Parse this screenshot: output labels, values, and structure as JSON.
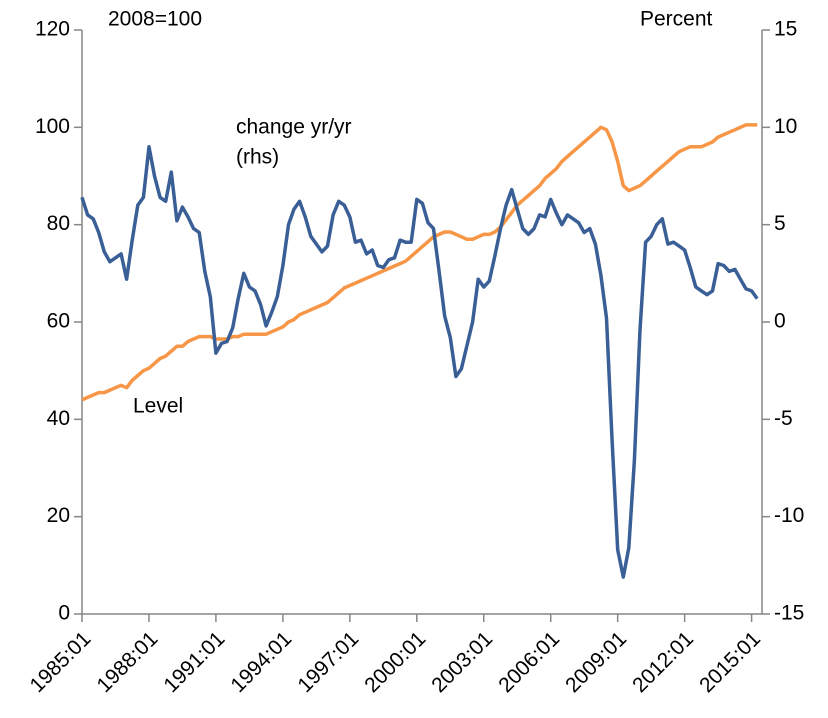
{
  "chart_data": {
    "type": "line",
    "annotations": [
      "2008=100",
      "Percent",
      "change yr/yr",
      "(rhs)",
      "Level"
    ],
    "categories": [
      "1985:01",
      null,
      null,
      null,
      null,
      null,
      null,
      null,
      null,
      null,
      null,
      null,
      "1988:01",
      null,
      null,
      null,
      null,
      null,
      null,
      null,
      null,
      null,
      null,
      null,
      "1991:01",
      null,
      null,
      null,
      null,
      null,
      null,
      null,
      null,
      null,
      null,
      null,
      "1994:01",
      null,
      null,
      null,
      null,
      null,
      null,
      null,
      null,
      null,
      null,
      null,
      "1997:01",
      null,
      null,
      null,
      null,
      null,
      null,
      null,
      null,
      null,
      null,
      null,
      "2000:01",
      null,
      null,
      null,
      null,
      null,
      null,
      null,
      null,
      null,
      null,
      null,
      "2003:01",
      null,
      null,
      null,
      null,
      null,
      null,
      null,
      null,
      null,
      null,
      null,
      "2006:01",
      null,
      null,
      null,
      null,
      null,
      null,
      null,
      null,
      null,
      null,
      null,
      "2009:01",
      null,
      null,
      null,
      null,
      null,
      null,
      null,
      null,
      null,
      null,
      null,
      "2012:01",
      null,
      null,
      null,
      null,
      null,
      null,
      null,
      null,
      null,
      null,
      null,
      "2015:01",
      null
    ],
    "series": [
      {
        "color": "#f79646",
        "values": [
          44,
          44.5,
          45,
          45.5,
          45.5,
          46,
          46.5,
          47,
          46.5,
          48,
          49,
          50,
          50.5,
          51.5,
          52.5,
          53,
          54,
          55,
          55,
          56,
          56.5,
          57,
          57,
          57,
          56.5,
          56.5,
          56.5,
          57,
          57,
          57.5,
          57.5,
          57.5,
          57.5,
          57.5,
          58,
          58.5,
          59,
          60,
          60.5,
          61.5,
          62,
          62.5,
          63,
          63.5,
          64,
          65,
          66,
          67,
          67.5,
          68,
          68.5,
          69,
          69.5,
          70,
          70.5,
          71,
          71.5,
          72,
          72.5,
          73.5,
          74.5,
          75.5,
          76.5,
          77.5,
          78,
          78.5,
          78.5,
          78,
          77.5,
          77,
          77,
          77.5,
          78,
          78,
          78.5,
          79.5,
          81,
          82.5,
          84,
          85,
          86,
          87,
          88,
          89.5,
          90.5,
          91.5,
          93,
          94,
          95,
          96,
          97,
          98,
          99,
          100,
          99.5,
          97,
          93,
          88,
          87,
          87.5,
          88,
          89,
          90,
          91,
          92,
          93,
          94,
          95,
          95.5,
          96,
          96,
          96,
          96.5,
          97,
          98,
          98.5,
          99,
          99.5,
          100,
          100.5,
          100.5,
          100.5
        ]
      },
      {
        "color": "#3a5f96",
        "axis": "y2",
        "values": [
          6.4,
          5.5,
          5.3,
          4.6,
          3.6,
          3.1,
          3.3,
          3.5,
          2.2,
          4.2,
          6.0,
          6.4,
          9.0,
          7.5,
          6.4,
          6.2,
          7.7,
          5.2,
          5.9,
          5.4,
          4.8,
          4.6,
          2.6,
          1.3,
          -1.6,
          -1.1,
          -1.0,
          -0.3,
          1.2,
          2.5,
          1.8,
          1.6,
          0.9,
          -0.2,
          0.5,
          1.3,
          2.9,
          5.0,
          5.8,
          6.2,
          5.4,
          4.4,
          4.0,
          3.6,
          3.9,
          5.5,
          6.2,
          6.0,
          5.4,
          4.1,
          4.2,
          3.5,
          3.7,
          2.9,
          2.8,
          3.2,
          3.3,
          4.2,
          4.1,
          4.1,
          6.3,
          6.1,
          5.1,
          4.8,
          2.6,
          0.3,
          -0.8,
          -2.8,
          -2.4,
          -1.2,
          0,
          2.2,
          1.8,
          2.1,
          3.4,
          4.8,
          6.0,
          6.8,
          5.8,
          4.8,
          4.5,
          4.8,
          5.5,
          5.4,
          6.3,
          5.6,
          5.0,
          5.5,
          5.3,
          5.1,
          4.6,
          4.8,
          4.0,
          2.4,
          0.2,
          -6.1,
          -11.7,
          -13.1,
          -11.6,
          -7.1,
          -0.4,
          4.1,
          4.4,
          5.0,
          5.3,
          4.0,
          4.1,
          3.9,
          3.7,
          2.8,
          1.8,
          1.6,
          1.4,
          1.6,
          3.0,
          2.9,
          2.6,
          2.7,
          2.2,
          1.7,
          1.6,
          1.2
        ]
      }
    ],
    "ylim": [
      0,
      120
    ],
    "yticks": [
      0,
      20,
      40,
      60,
      80,
      100,
      120
    ],
    "y2lim": [
      -15,
      15
    ],
    "y2ticks": [
      -15,
      -10,
      -5,
      0,
      5,
      10,
      15
    ]
  }
}
